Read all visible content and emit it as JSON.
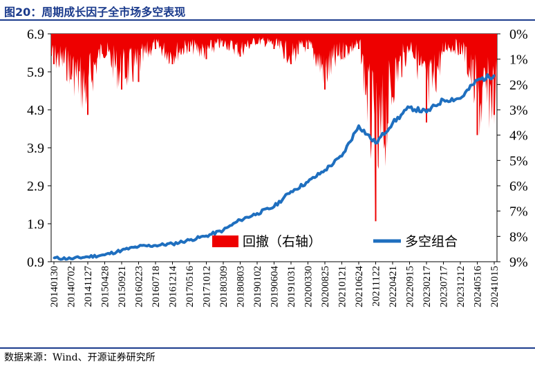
{
  "header": {
    "title": "图20：周期成长因子全市场多空表现"
  },
  "footer": {
    "source": "数据来源：Wind、开源证券研究所"
  },
  "colors": {
    "drawdown": "#ee0000",
    "line": "#1f6fbf",
    "accent": "#1a3a8c"
  },
  "chart_data": {
    "type": "line",
    "title": "周期成长因子全市场多空表现",
    "categories": [
      "20140130",
      "20140702",
      "20141127",
      "20150428",
      "20150921",
      "20160223",
      "20160718",
      "20161214",
      "20170516",
      "20171012",
      "20180309",
      "20180803",
      "20190102",
      "20190604",
      "20191031",
      "20200330",
      "20200825",
      "20210121",
      "20210624",
      "20211122",
      "20220421",
      "20220915",
      "20230217",
      "20230717",
      "20231212",
      "20240516",
      "20241015"
    ],
    "y_left": {
      "ticks": [
        "6.9",
        "5.9",
        "4.9",
        "3.9",
        "2.9",
        "1.9",
        "0.9"
      ],
      "ylim": [
        0.9,
        6.9
      ]
    },
    "y_right": {
      "ticks": [
        "0%",
        "1%",
        "2%",
        "3%",
        "4%",
        "5%",
        "6%",
        "7%",
        "8%",
        "9%"
      ],
      "ylim": [
        0,
        9
      ],
      "inverted": true
    },
    "legend_position": "bottom-right",
    "series": [
      {
        "name": "多空组合",
        "axis": "left",
        "kind": "line",
        "values": [
          1.0,
          0.98,
          1.03,
          1.08,
          1.2,
          1.3,
          1.33,
          1.37,
          1.47,
          1.58,
          1.73,
          2.0,
          2.17,
          2.35,
          2.75,
          3.0,
          3.31,
          3.68,
          4.48,
          4.02,
          4.55,
          4.96,
          4.84,
          5.16,
          5.2,
          5.68,
          5.81
        ]
      },
      {
        "name": "回撤（右轴）",
        "axis": "right",
        "kind": "area",
        "values": [
          1.2,
          1.8,
          3.2,
          0.8,
          2.2,
          1.9,
          0.6,
          1.2,
          0.7,
          1.0,
          0.5,
          0.9,
          0.4,
          0.6,
          1.2,
          0.6,
          2.2,
          1.0,
          0.6,
          7.4,
          2.5,
          0.6,
          3.5,
          0.7,
          0.8,
          4.0,
          3.2
        ]
      }
    ]
  }
}
